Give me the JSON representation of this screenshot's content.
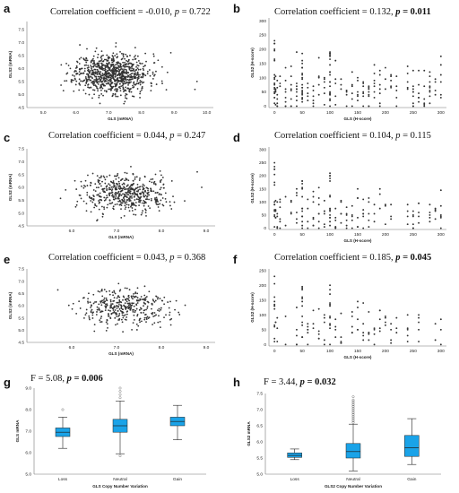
{
  "chart_data": [
    {
      "id": "a",
      "type": "scatter",
      "panel_label": "a",
      "annotation": {
        "prefix": "Correlation coefficient = -0.010, ",
        "p_label": "p",
        "p_value": " = 0.722",
        "bold": false
      },
      "xlabel": "GLS (mRNA)",
      "ylabel": "GLS2 (mRNA)",
      "xlim": [
        4.5,
        10.2
      ],
      "ylim": [
        4.5,
        7.8
      ],
      "xticks": [
        "5.0",
        "6.0",
        "7.0",
        "8.0",
        "9.0",
        "10.0"
      ],
      "xtick_values": [
        5,
        6,
        7,
        8,
        9,
        10
      ],
      "yticks": [
        "4.5",
        "5.0",
        "5.5",
        "6.0",
        "6.5",
        "7.0",
        "7.5"
      ],
      "ytick_values": [
        4.5,
        5.0,
        5.5,
        6.0,
        6.5,
        7.0,
        7.5
      ],
      "cloud": {
        "n": 900,
        "x_mean": 7.1,
        "x_sd": 0.55,
        "y_mean": 5.8,
        "y_sd": 0.38,
        "seed": 11
      },
      "outliers": [
        {
          "x": 9.7,
          "y": 5.5
        },
        {
          "x": 8.9,
          "y": 6.6
        }
      ]
    },
    {
      "id": "b",
      "type": "scatter",
      "panel_label": "b",
      "annotation": {
        "prefix": "Correlation coefficient = 0.132, ",
        "p_label": "p",
        "p_value": " = 0.011",
        "bold": true
      },
      "xlabel": "GLS (H-score)",
      "ylabel": "GLS2 (H-score)",
      "xlim": [
        -10,
        310
      ],
      "ylim": [
        -5,
        310
      ],
      "xticks": [
        "0",
        "50",
        "100",
        "150",
        "200",
        "250",
        "300"
      ],
      "xtick_values": [
        0,
        50,
        100,
        150,
        200,
        250,
        300
      ],
      "yticks": [
        "0",
        "50",
        "100",
        "150",
        "200",
        "250",
        "300"
      ],
      "ytick_values": [
        0,
        50,
        100,
        150,
        200,
        250,
        300
      ],
      "hscore": {
        "columns": [
          0,
          2,
          5,
          10,
          20,
          30,
          40,
          50,
          60,
          70,
          80,
          90,
          100,
          110,
          120,
          130,
          140,
          150,
          160,
          170,
          180,
          190,
          200,
          210,
          220,
          240,
          250,
          260,
          270,
          280,
          290,
          300
        ],
        "seed": 21,
        "per_col": 7
      }
    },
    {
      "id": "c",
      "type": "scatter",
      "panel_label": "c",
      "annotation": {
        "prefix": "Correlation coefficient = 0.044, ",
        "p_label": "p",
        "p_value": " = 0.247",
        "bold": false
      },
      "xlabel": "GLS (mRNA)",
      "ylabel": "GLS2 (mRNA)",
      "xlim": [
        5.0,
        9.2
      ],
      "ylim": [
        4.5,
        7.5
      ],
      "xticks": [
        "6.0",
        "7.0",
        "8.0",
        "9.0"
      ],
      "xtick_values": [
        6,
        7,
        8,
        9
      ],
      "yticks": [
        "4.5",
        "5.0",
        "5.5",
        "6.0",
        "6.5",
        "7.0",
        "7.5"
      ],
      "ytick_values": [
        4.5,
        5.0,
        5.5,
        6.0,
        6.5,
        7.0,
        7.5
      ],
      "cloud": {
        "n": 520,
        "x_mean": 7.2,
        "x_sd": 0.48,
        "y_mean": 5.75,
        "y_sd": 0.36,
        "seed": 31
      },
      "outliers": [
        {
          "x": 8.8,
          "y": 6.6
        },
        {
          "x": 8.9,
          "y": 6.0
        }
      ]
    },
    {
      "id": "d",
      "type": "scatter",
      "panel_label": "d",
      "annotation": {
        "prefix": "Correlation coefficient = 0.104, ",
        "p_label": "p",
        "p_value": " = 0.115",
        "bold": false
      },
      "xlabel": "GLS (H-score)",
      "ylabel": "GLS2 (H-score)",
      "xlim": [
        -10,
        310
      ],
      "ylim": [
        -5,
        310
      ],
      "xticks": [
        "0",
        "50",
        "100",
        "150",
        "200",
        "250",
        "300"
      ],
      "xtick_values": [
        0,
        50,
        100,
        150,
        200,
        250,
        300
      ],
      "yticks": [
        "0",
        "50",
        "100",
        "150",
        "200",
        "250",
        "300"
      ],
      "ytick_values": [
        0,
        50,
        100,
        150,
        200,
        250,
        300
      ],
      "hscore": {
        "columns": [
          0,
          2,
          5,
          10,
          20,
          30,
          40,
          50,
          60,
          70,
          80,
          90,
          100,
          110,
          120,
          130,
          140,
          150,
          160,
          170,
          180,
          190,
          200,
          210,
          240,
          250,
          260,
          280,
          290,
          300
        ],
        "seed": 41,
        "per_col": 5
      }
    },
    {
      "id": "e",
      "type": "scatter",
      "panel_label": "e",
      "annotation": {
        "prefix": "Correlation coefficient = 0.043, ",
        "p_label": "p",
        "p_value": " = 0.368",
        "bold": false
      },
      "xlabel": "GLS (mRNA)",
      "ylabel": "GLS2 (mRNA)",
      "xlim": [
        5.0,
        9.2
      ],
      "ylim": [
        4.5,
        7.5
      ],
      "xticks": [
        "6.0",
        "7.0",
        "8.0",
        "9.0"
      ],
      "xtick_values": [
        6,
        7,
        8,
        9
      ],
      "yticks": [
        "4.5",
        "5.0",
        "5.5",
        "6.0",
        "6.5",
        "7.0",
        "7.5"
      ],
      "ytick_values": [
        4.5,
        5.0,
        5.5,
        6.0,
        6.5,
        7.0,
        7.5
      ],
      "cloud": {
        "n": 380,
        "x_mean": 7.2,
        "x_sd": 0.5,
        "y_mean": 5.9,
        "y_sd": 0.38,
        "seed": 51
      },
      "outliers": []
    },
    {
      "id": "f",
      "type": "scatter",
      "panel_label": "f",
      "annotation": {
        "prefix": "Correlation coefficient = 0.185, ",
        "p_label": "p",
        "p_value": " = 0.045",
        "bold": true
      },
      "xlabel": "GLS (H-score)",
      "ylabel": "GLS2 (H-score)",
      "xlim": [
        -10,
        310
      ],
      "ylim": [
        -5,
        255
      ],
      "xticks": [
        "0",
        "50",
        "100",
        "150",
        "200",
        "250",
        "300"
      ],
      "xtick_values": [
        0,
        50,
        100,
        150,
        200,
        250,
        300
      ],
      "yticks": [
        "0",
        "50",
        "100",
        "150",
        "200",
        "250"
      ],
      "ytick_values": [
        0,
        50,
        100,
        150,
        200,
        250
      ],
      "hscore": {
        "columns": [
          0,
          2,
          5,
          20,
          40,
          50,
          60,
          70,
          80,
          90,
          100,
          110,
          120,
          140,
          150,
          160,
          170,
          180,
          190,
          200,
          210,
          220,
          240,
          260,
          290,
          300
        ],
        "seed": 61,
        "per_col": 4
      }
    },
    {
      "id": "g",
      "type": "box",
      "panel_label": "g",
      "annotation": {
        "prefix": "F = 5.08, ",
        "p_label": "p",
        "p_value": " = 0.006",
        "bold": true
      },
      "xlabel": "GLS Copy Number Variation",
      "ylabel": "GLS mRNA",
      "ylim": [
        5.0,
        9.0
      ],
      "yticks": [
        "5.0",
        "6.0",
        "7.0",
        "8.0",
        "9.0"
      ],
      "ytick_values": [
        5,
        6,
        7,
        8,
        9
      ],
      "categories": [
        "Loss",
        "Neutral",
        "Gain"
      ],
      "boxes": [
        {
          "category": "Loss",
          "whisker_low": 6.2,
          "q1": 6.75,
          "median": 6.95,
          "q3": 7.15,
          "whisker_high": 7.65,
          "outliers": [
            8.0
          ]
        },
        {
          "category": "Neutral",
          "whisker_low": 5.95,
          "q1": 6.95,
          "median": 7.25,
          "q3": 7.55,
          "whisker_high": 8.4,
          "outliers": [
            8.55,
            8.7,
            8.85,
            9.0,
            5.85
          ]
        },
        {
          "category": "Gain",
          "whisker_low": 6.6,
          "q1": 7.25,
          "median": 7.45,
          "q3": 7.65,
          "whisker_high": 8.2,
          "outliers": []
        }
      ],
      "box_color": "#1aa3e8"
    },
    {
      "id": "h",
      "type": "box",
      "panel_label": "h",
      "annotation": {
        "prefix": "F = 3.44, ",
        "p_label": "p",
        "p_value": " = 0.032",
        "bold": true
      },
      "xlabel": "GLS2 Copy Number Variation",
      "ylabel": "GLS2 mRNA",
      "ylim": [
        5.0,
        7.5
      ],
      "yticks": [
        "5.0",
        "5.5",
        "6.0",
        "6.5",
        "7.0",
        "7.5"
      ],
      "ytick_values": [
        5.0,
        5.5,
        6.0,
        6.5,
        7.0,
        7.5
      ],
      "categories": [
        "Loss",
        "Neutral",
        "Gain"
      ],
      "boxes": [
        {
          "category": "Loss",
          "whisker_low": 5.45,
          "q1": 5.52,
          "median": 5.58,
          "q3": 5.66,
          "whisker_high": 5.78,
          "outliers": []
        },
        {
          "category": "Neutral",
          "whisker_low": 5.1,
          "q1": 5.5,
          "median": 5.7,
          "q3": 5.95,
          "whisker_high": 6.55,
          "outliers": [
            6.6,
            6.65,
            6.7,
            6.75,
            6.8,
            6.85,
            6.9,
            6.95,
            7.0,
            7.05,
            7.1,
            7.15,
            7.2,
            7.25,
            7.3,
            7.4
          ]
        },
        {
          "category": "Gain",
          "whisker_low": 5.3,
          "q1": 5.55,
          "median": 5.82,
          "q3": 6.2,
          "whisker_high": 6.72,
          "outliers": []
        }
      ],
      "box_color": "#1aa3e8"
    }
  ]
}
